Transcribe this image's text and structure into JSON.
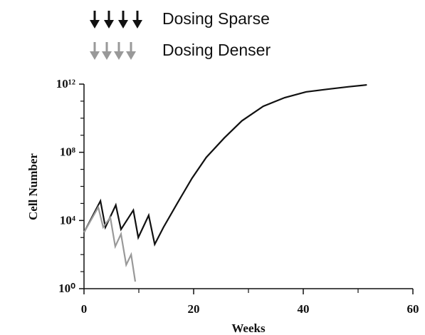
{
  "chart_data": {
    "type": "line",
    "x_label": "Weeks",
    "y_label": "Cell Number",
    "series": [
      {
        "name": "Dosing Sparse",
        "color": "#111111",
        "x": [
          0,
          3,
          3.9,
          5.8,
          6.75,
          9,
          9.9,
          11.8,
          12.9,
          14.5,
          17,
          19.7,
          22.3,
          25.6,
          28.8,
          32.7,
          36.6,
          40.5,
          44.4,
          48.3,
          51.6
        ],
        "values": [
          2000,
          140000,
          4000,
          80000,
          3000,
          40000,
          1000,
          20000,
          400,
          4000,
          100000,
          3000000,
          50000000,
          700000000,
          7000000000,
          50000000000,
          160000000000,
          350000000000,
          500000000000,
          700000000000,
          900000000000
        ]
      },
      {
        "name": "Dosing Denser",
        "color": "#999999",
        "x": [
          0,
          2.6,
          3.5,
          4.8,
          5.7,
          6.75,
          7.7,
          8.6,
          9.35
        ],
        "values": [
          2000,
          60000,
          4000,
          15000,
          300,
          1600,
          25,
          100,
          2.6
        ]
      }
    ],
    "xlim": [
      0,
      60
    ],
    "xticks": [
      0,
      20,
      40,
      60
    ],
    "xminorticks": [
      10,
      30,
      50
    ],
    "ylim": [
      1,
      1000000000000
    ],
    "log_y": true,
    "yticks": [
      {
        "value": 1,
        "label": "10⁰"
      },
      {
        "value": 10000,
        "label": "10⁴"
      },
      {
        "value": 100000000,
        "label": "10⁸"
      },
      {
        "value": 1000000000000,
        "label": "10¹²"
      }
    ],
    "yminorticks": [
      10,
      100,
      1000,
      100000,
      1000000,
      10000000,
      1000000000,
      10000000000,
      100000000000
    ]
  }
}
